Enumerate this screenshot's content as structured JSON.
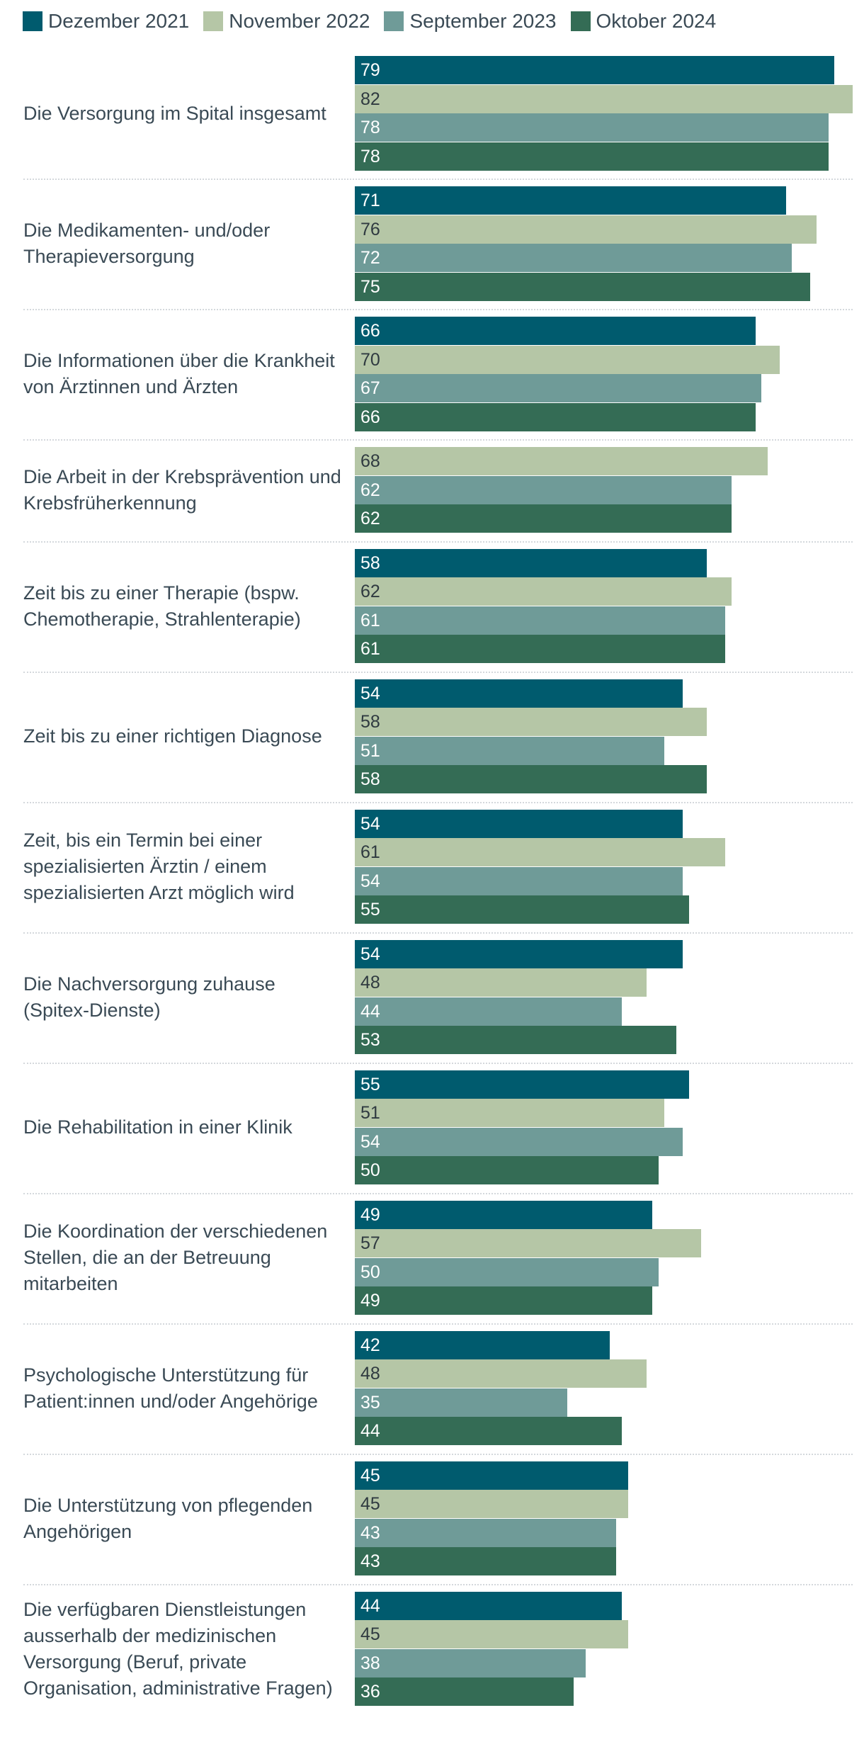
{
  "chart_data": {
    "type": "bar",
    "orientation": "horizontal",
    "categories": [
      "Die Versorgung im Spital insgesamt",
      "Die Medikamenten- und/oder Therapieversorgung",
      "Die Informationen über die Krankheit von Ärztinnen und Ärzten",
      "Die Arbeit in der Krebsprävention und Krebsfrüherkennung",
      "Zeit bis zu einer Therapie (bspw. Chemotherapie, Strahlenterapie)",
      "Zeit bis zu einer richtigen Diagnose",
      "Zeit, bis ein Termin bei einer spezialisierten Ärztin / einem spezialisierten Arzt möglich wird",
      "Die Nachversorgung zuhause (Spitex-Dienste)",
      "Die Rehabilitation in einer Klinik",
      "Die Koordination der verschiedenen Stellen, die an der Betreuung mitarbeiten",
      "Psychologische Unterstützung für Patient:innen und/oder Angehörige",
      "Die Unterstützung von pflegenden Angehörigen",
      "Die verfügbaren Dienstleistungen ausserhalb der medizinischen Versorgung (Beruf, private Organisation, administrative Fragen)"
    ],
    "series": [
      {
        "name": "Dezember 2021",
        "color": "#005b6e",
        "values": [
          79,
          71,
          66,
          null,
          58,
          54,
          54,
          54,
          55,
          49,
          42,
          45,
          44
        ]
      },
      {
        "name": "November 2022",
        "color": "#b5c6a6",
        "values": [
          82,
          76,
          70,
          68,
          62,
          58,
          61,
          48,
          51,
          57,
          48,
          45,
          45
        ]
      },
      {
        "name": "September 2023",
        "color": "#6f9b98",
        "values": [
          78,
          72,
          67,
          62,
          61,
          51,
          54,
          44,
          54,
          50,
          35,
          43,
          38
        ]
      },
      {
        "name": "Oktober 2024",
        "color": "#346c55",
        "values": [
          78,
          75,
          66,
          62,
          61,
          58,
          55,
          53,
          50,
          49,
          44,
          43,
          36
        ]
      }
    ],
    "legend": "top-left"
  }
}
